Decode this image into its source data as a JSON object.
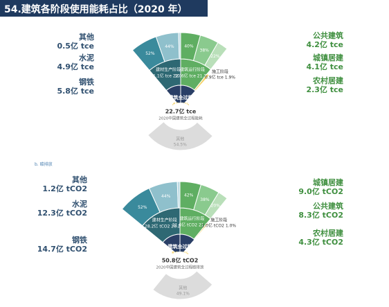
{
  "title": "54.建筑各阶段使用能耗占比（2020 年）",
  "colors": {
    "building": "#8aca8e",
    "building_inner": "#5fae62",
    "materials": "#3a8a9c",
    "materials_inner": "#2e6873",
    "construction": "#f3d168",
    "total": "#2a3f66",
    "other": "#dcdcdc",
    "title_bg": "#1f3a5f"
  },
  "chart_data": [
    {
      "type": "pie",
      "subtitle": "",
      "center": {
        "value": "22.7亿 tce",
        "label": "2020中国建筑全过程能耗"
      },
      "core": {
        "name": "建筑全过程",
        "pct": "45.5%"
      },
      "other": {
        "name": "其他",
        "pct": "54.5%"
      },
      "stages": [
        {
          "key": "materials",
          "label": "建材生产阶段",
          "value": "11.1亿 tce",
          "pct": "22.3%"
        },
        {
          "key": "building",
          "label": "建筑运行阶段",
          "value": "10.6亿 tce",
          "pct": "21.3%"
        },
        {
          "key": "construction",
          "label": "施工阶段",
          "value": "0.9亿 tce",
          "pct": "1.9%"
        }
      ],
      "materials_breakdown": [
        {
          "name": "钢铁",
          "value": "5.8亿 tce",
          "pct": "52%"
        },
        {
          "name": "水泥",
          "value": "4.9亿 tce",
          "pct": "44%"
        },
        {
          "name": "其他",
          "value": "0.5亿 tce",
          "pct": "4%"
        }
      ],
      "building_breakdown": [
        {
          "name": "公共建筑",
          "value": "4.2亿 tce",
          "pct": "40%"
        },
        {
          "name": "城镇居建",
          "value": "4.1亿 tce",
          "pct": "38%"
        },
        {
          "name": "农村居建",
          "value": "2.3亿 tce",
          "pct": "22%"
        }
      ]
    },
    {
      "type": "pie",
      "subtitle": "b. 碳排放",
      "center": {
        "value": "50.8亿 tCO2",
        "label": "2020中国建筑全过程碳排放"
      },
      "core": {
        "name": "建筑全过程",
        "pct": "50.9%"
      },
      "other": {
        "name": "其他",
        "pct": "49.1%"
      },
      "stages": [
        {
          "key": "materials",
          "label": "建材生产阶段",
          "value": "28.2亿 tCO2",
          "pct": "28.2%"
        },
        {
          "key": "building",
          "label": "建筑运行阶段",
          "value": "21.6亿 tCO2",
          "pct": "21.7%"
        },
        {
          "key": "construction",
          "label": "施工阶段",
          "value": "1.0亿 tCO2",
          "pct": "1.0%"
        }
      ],
      "materials_breakdown": [
        {
          "name": "钢铁",
          "value": "14.7亿 tCO2",
          "pct": "52%"
        },
        {
          "name": "水泥",
          "value": "12.3亿 tCO2",
          "pct": "44%"
        },
        {
          "name": "其他",
          "value": "1.2亿 tCO2",
          "pct": "4%"
        }
      ],
      "building_breakdown": [
        {
          "name": "城镇居建",
          "value": "9.0亿 tCO2",
          "pct": "42%"
        },
        {
          "name": "公共建筑",
          "value": "8.3亿 tCO2",
          "pct": "38%"
        },
        {
          "name": "农村居建",
          "value": "4.3亿 tCO2",
          "pct": "20%"
        }
      ]
    }
  ]
}
